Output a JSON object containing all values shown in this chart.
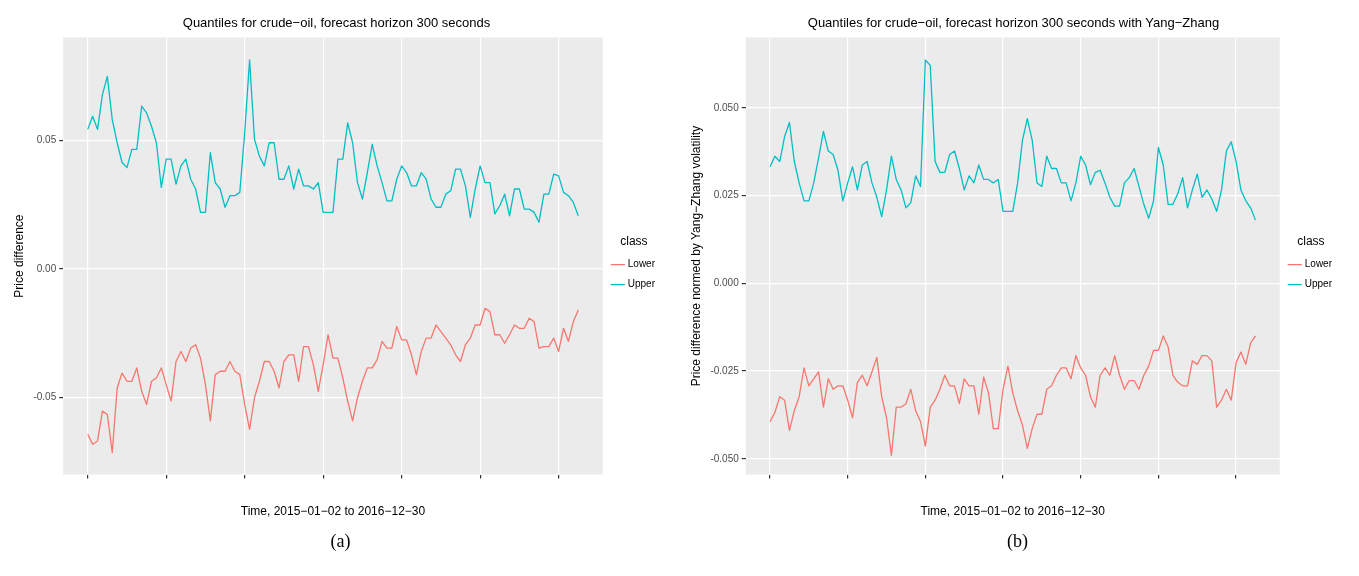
{
  "chart_data": [
    {
      "type": "line",
      "title": "Quantiles for crude−oil, forecast horizon 300 seconds",
      "xlabel": "Time, 2015−01−02 to 2016−12−30",
      "ylabel": "Price difference",
      "legend_title": "class",
      "legend": "right",
      "grid": true,
      "tick_labels": "y",
      "annotations": [
        "(a)"
      ],
      "categories": [
        null,
        null,
        null,
        null,
        null,
        null,
        null,
        null,
        null,
        null,
        null,
        null,
        null,
        null,
        null,
        null,
        null,
        null,
        null,
        null,
        null,
        null,
        null,
        null,
        null,
        null,
        null,
        null,
        null,
        null,
        null,
        null,
        null,
        null,
        null,
        null,
        null,
        null,
        null,
        null,
        null,
        null,
        null,
        null,
        null,
        null,
        null,
        null,
        null,
        null,
        null,
        null,
        null,
        null,
        null,
        null,
        null,
        null,
        null,
        null,
        null,
        null,
        null,
        null,
        null,
        null,
        null,
        null,
        null,
        null,
        null,
        null,
        null,
        null,
        null,
        null,
        null,
        null,
        null,
        null,
        null,
        null,
        null,
        null,
        null,
        null,
        null,
        null,
        null,
        null,
        null,
        null,
        null,
        null,
        null,
        null,
        null,
        null,
        null,
        null,
        null
      ],
      "ylim": [
        -0.08,
        0.09
      ],
      "yticks": [
        {
          "value": -0.05,
          "label": "-0.05"
        },
        {
          "value": 0,
          "label": "0.00"
        },
        {
          "value": 0.05,
          "label": "0.05"
        }
      ],
      "series": [
        {
          "name": "Lower",
          "color": "#f8766d",
          "values": [
            -0.0643,
            -0.0682,
            -0.0669,
            -0.0553,
            -0.0566,
            -0.0714,
            -0.0463,
            -0.0405,
            -0.0437,
            -0.0437,
            -0.0385,
            -0.0476,
            -0.0527,
            -0.0437,
            -0.0424,
            -0.0385,
            -0.045,
            -0.0514,
            -0.036,
            -0.0321,
            -0.036,
            -0.0308,
            -0.0295,
            -0.0347,
            -0.045,
            -0.0591,
            -0.0411,
            -0.0398,
            -0.0398,
            -0.036,
            -0.0398,
            -0.0411,
            -0.0527,
            -0.0624,
            -0.0501,
            -0.0437,
            -0.036,
            -0.036,
            -0.0398,
            -0.0463,
            -0.036,
            -0.0334,
            -0.0334,
            -0.0437,
            -0.0302,
            -0.0302,
            -0.0372,
            -0.0476,
            -0.0372,
            -0.0256,
            -0.0347,
            -0.0347,
            -0.0424,
            -0.0514,
            -0.0591,
            -0.0501,
            -0.0437,
            -0.0385,
            -0.0385,
            -0.0353,
            -0.0282,
            -0.0308,
            -0.0308,
            -0.0224,
            -0.0276,
            -0.0276,
            -0.0334,
            -0.0411,
            -0.0321,
            -0.0269,
            -0.0269,
            -0.0218,
            -0.0244,
            -0.0269,
            -0.0295,
            -0.0334,
            -0.036,
            -0.0295,
            -0.0269,
            -0.0218,
            -0.0218,
            -0.0153,
            -0.0166,
            -0.0256,
            -0.0256,
            -0.0289,
            -0.0256,
            -0.0218,
            -0.0231,
            -0.0231,
            -0.0192,
            -0.0205,
            -0.0308,
            -0.0302,
            -0.0302,
            -0.0269,
            -0.0321,
            -0.0231,
            -0.0282,
            -0.0205,
            -0.016
          ]
        },
        {
          "name": "Upper",
          "color": "#00bfc4",
          "values": [
            0.0543,
            0.0594,
            0.0543,
            0.0678,
            0.0749,
            0.0581,
            0.0491,
            0.0414,
            0.0394,
            0.0465,
            0.0465,
            0.0633,
            0.0607,
            0.0555,
            0.0491,
            0.0317,
            0.0427,
            0.0427,
            0.033,
            0.0401,
            0.0427,
            0.0349,
            0.0311,
            0.022,
            0.022,
            0.0452,
            0.0336,
            0.0311,
            0.024,
            0.0285,
            0.0285,
            0.0298,
            0.053,
            0.0813,
            0.0504,
            0.0439,
            0.0401,
            0.0491,
            0.0491,
            0.0349,
            0.0349,
            0.0401,
            0.0311,
            0.0388,
            0.0323,
            0.0323,
            0.0311,
            0.0336,
            0.022,
            0.022,
            0.022,
            0.0427,
            0.0427,
            0.0568,
            0.0491,
            0.0336,
            0.0272,
            0.0375,
            0.0485,
            0.0401,
            0.0336,
            0.0265,
            0.0265,
            0.0349,
            0.0401,
            0.0375,
            0.0323,
            0.0323,
            0.0375,
            0.0349,
            0.0272,
            0.024,
            0.024,
            0.0291,
            0.0304,
            0.0388,
            0.0388,
            0.0323,
            0.0201,
            0.0311,
            0.0401,
            0.0336,
            0.0336,
            0.0214,
            0.0246,
            0.0291,
            0.0207,
            0.0311,
            0.0311,
            0.0233,
            0.0233,
            0.022,
            0.0182,
            0.0291,
            0.0291,
            0.0369,
            0.0362,
            0.0298,
            0.0285,
            0.0259,
            0.0207
          ]
        }
      ]
    },
    {
      "type": "line",
      "title": "Quantiles for crude−oil, forecast horizon 300 seconds with Yang−Zhang",
      "xlabel": "Time, 2015−01−02 to 2016−12−30",
      "ylabel": "Price difference normed by Yang−Zhang volatility",
      "legend_title": "class",
      "legend": "right",
      "grid": true,
      "tick_labels": "y",
      "annotations": [
        "(b)"
      ],
      "categories": [
        null,
        null,
        null,
        null,
        null,
        null,
        null,
        null,
        null,
        null,
        null,
        null,
        null,
        null,
        null,
        null,
        null,
        null,
        null,
        null,
        null,
        null,
        null,
        null,
        null,
        null,
        null,
        null,
        null,
        null,
        null,
        null,
        null,
        null,
        null,
        null,
        null,
        null,
        null,
        null,
        null,
        null,
        null,
        null,
        null,
        null,
        null,
        null,
        null,
        null,
        null,
        null,
        null,
        null,
        null,
        null,
        null,
        null,
        null,
        null,
        null,
        null,
        null,
        null,
        null,
        null,
        null,
        null,
        null,
        null,
        null,
        null,
        null,
        null,
        null,
        null,
        null,
        null,
        null,
        null,
        null,
        null,
        null,
        null,
        null,
        null,
        null,
        null,
        null,
        null,
        null,
        null,
        null,
        null,
        null,
        null,
        null,
        null,
        null,
        null,
        null
      ],
      "ylim": [
        -0.0545,
        0.07
      ],
      "yticks": [
        {
          "value": -0.05,
          "label": "-0.050"
        },
        {
          "value": -0.025,
          "label": "-0.025"
        },
        {
          "value": 0,
          "label": "0.000"
        },
        {
          "value": 0.025,
          "label": "0.025"
        },
        {
          "value": 0.05,
          "label": "0.050"
        }
      ],
      "series": [
        {
          "name": "Lower",
          "color": "#f8766d",
          "values": [
            -0.0394,
            -0.0368,
            -0.0323,
            -0.0333,
            -0.0419,
            -0.0363,
            -0.0323,
            -0.0241,
            -0.0292,
            -0.0272,
            -0.0252,
            -0.0353,
            -0.0272,
            -0.0302,
            -0.0292,
            -0.0292,
            -0.0333,
            -0.0383,
            -0.0282,
            -0.0262,
            -0.0292,
            -0.0252,
            -0.0211,
            -0.0323,
            -0.0383,
            -0.049,
            -0.0353,
            -0.0353,
            -0.0343,
            -0.0302,
            -0.0363,
            -0.0394,
            -0.0464,
            -0.0353,
            -0.0333,
            -0.0302,
            -0.0262,
            -0.0292,
            -0.0292,
            -0.0343,
            -0.0272,
            -0.0292,
            -0.0292,
            -0.0373,
            -0.0267,
            -0.0312,
            -0.0414,
            -0.0414,
            -0.0302,
            -0.0236,
            -0.0312,
            -0.0363,
            -0.0404,
            -0.047,
            -0.0414,
            -0.0373,
            -0.0373,
            -0.0302,
            -0.0292,
            -0.0262,
            -0.0241,
            -0.0241,
            -0.0272,
            -0.0206,
            -0.0241,
            -0.0262,
            -0.0323,
            -0.0353,
            -0.0262,
            -0.0241,
            -0.0262,
            -0.0206,
            -0.0262,
            -0.0302,
            -0.0277,
            -0.0277,
            -0.0302,
            -0.0262,
            -0.0236,
            -0.0191,
            -0.0191,
            -0.015,
            -0.0181,
            -0.0262,
            -0.0282,
            -0.0292,
            -0.0292,
            -0.0221,
            -0.0231,
            -0.0206,
            -0.0206,
            -0.0221,
            -0.0353,
            -0.0333,
            -0.0302,
            -0.0333,
            -0.0226,
            -0.0196,
            -0.0231,
            -0.017,
            -0.015
          ]
        },
        {
          "name": "Upper",
          "color": "#00bfc4",
          "values": [
            0.0332,
            0.0362,
            0.0347,
            0.0418,
            0.0458,
            0.0347,
            0.0286,
            0.0235,
            0.0235,
            0.0286,
            0.0357,
            0.0433,
            0.0377,
            0.0367,
            0.0322,
            0.0235,
            0.0286,
            0.0332,
            0.0266,
            0.0337,
            0.0347,
            0.0286,
            0.0245,
            0.019,
            0.0266,
            0.0362,
            0.0296,
            0.0266,
            0.0215,
            0.023,
            0.0306,
            0.0276,
            0.0636,
            0.0621,
            0.0347,
            0.0316,
            0.0316,
            0.0367,
            0.0377,
            0.0327,
            0.0266,
            0.0306,
            0.0286,
            0.0337,
            0.0296,
            0.0296,
            0.0286,
            0.0296,
            0.0205,
            0.0205,
            0.0205,
            0.0286,
            0.0408,
            0.0469,
            0.0408,
            0.0286,
            0.0276,
            0.0362,
            0.0327,
            0.0327,
            0.0286,
            0.0286,
            0.0235,
            0.0286,
            0.0362,
            0.0337,
            0.0281,
            0.0316,
            0.0322,
            0.0286,
            0.0245,
            0.022,
            0.022,
            0.0286,
            0.0301,
            0.0327,
            0.0276,
            0.0225,
            0.0185,
            0.0235,
            0.0387,
            0.0337,
            0.0225,
            0.0225,
            0.0256,
            0.0301,
            0.0215,
            0.0266,
            0.0311,
            0.0245,
            0.0266,
            0.024,
            0.0205,
            0.0266,
            0.0377,
            0.0403,
            0.0347,
            0.0266,
            0.0235,
            0.0215,
            0.018
          ]
        }
      ]
    }
  ]
}
